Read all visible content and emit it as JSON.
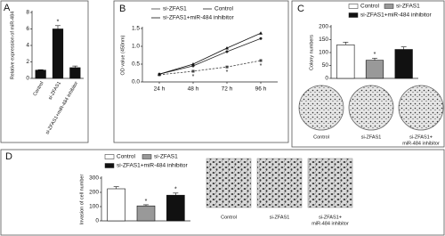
{
  "chart_data": [
    {
      "panel_label": "A",
      "type": "bar",
      "ylabel": "Relative expression of miR-484",
      "categories": [
        "Control",
        "si-ZFAS1",
        "si-ZFAS1+miR-484 inhibitor"
      ],
      "values": [
        1,
        6,
        1.3
      ],
      "errors": [
        0.05,
        0.4,
        0.2
      ],
      "colors": [
        "#111111",
        "#111111",
        "#111111"
      ],
      "significance": [
        null,
        "*",
        null
      ],
      "ylim": [
        0,
        8
      ],
      "yticks": [
        0,
        2,
        4,
        6,
        8
      ],
      "legend": false
    },
    {
      "panel_label": "B",
      "type": "line",
      "ylabel": "OD value (450nm)",
      "categories": [
        "24 h",
        "48 h",
        "72 h",
        "96 h"
      ],
      "series": [
        {
          "name": "si-ZFAS1",
          "color": "#444444",
          "marker": "square",
          "line_style": "dashed",
          "values": [
            0.2,
            0.3,
            0.42,
            0.6
          ],
          "significance": [
            null,
            "*",
            "*",
            "*"
          ]
        },
        {
          "name": "Control",
          "color": "#222222",
          "marker": "circle",
          "line_style": "solid",
          "values": [
            0.22,
            0.45,
            0.85,
            1.22
          ]
        },
        {
          "name": "si-ZFAS1+miR-484 inhibitor",
          "color": "#111111",
          "marker": "triangle",
          "line_style": "solid",
          "values": [
            0.22,
            0.5,
            0.95,
            1.37
          ]
        }
      ],
      "ylim": [
        0,
        1.5
      ],
      "yticks": [
        {
          "value": 0,
          "label": "0.0"
        },
        0.5,
        {
          "value": 1,
          "label": "1.0"
        },
        1.5
      ]
    },
    {
      "panel_label": "C",
      "type": "bar",
      "ylabel": "Colony numbers",
      "categories": [
        "Control",
        "si-ZFAS1",
        "si-ZFAS1+miR-484 inhibitor"
      ],
      "values": [
        130,
        70,
        112
      ],
      "errors": [
        10,
        8,
        10
      ],
      "colors": [
        "#ffffff",
        "#999999",
        "#111111"
      ],
      "significance": [
        null,
        "*",
        null
      ],
      "ylim": [
        0,
        200
      ],
      "yticks": [
        0,
        50,
        100,
        150,
        200
      ],
      "legend": true,
      "image_labels": [
        [
          "Control"
        ],
        [
          "si-ZFAS1"
        ],
        [
          "si-ZFAS1+",
          "miR-484 inhibitor"
        ]
      ]
    },
    {
      "panel_label": "D",
      "type": "bar",
      "ylabel": "Invasion of cell number",
      "categories": [
        "Control",
        "si-ZFAS1",
        "si-ZFAS1+miR-484 inhibitor"
      ],
      "values": [
        225,
        105,
        180
      ],
      "errors": [
        15,
        8,
        15
      ],
      "colors": [
        "#ffffff",
        "#999999",
        "#111111"
      ],
      "significance": [
        null,
        "*",
        "*"
      ],
      "ylim": [
        0,
        300
      ],
      "yticks": [
        0,
        100,
        200,
        300
      ],
      "legend": true,
      "image_labels": [
        [
          "Control"
        ],
        [
          "si-ZFAS1"
        ],
        [
          "si-ZFAS1+",
          "miR-484 inhibitor"
        ]
      ]
    }
  ]
}
